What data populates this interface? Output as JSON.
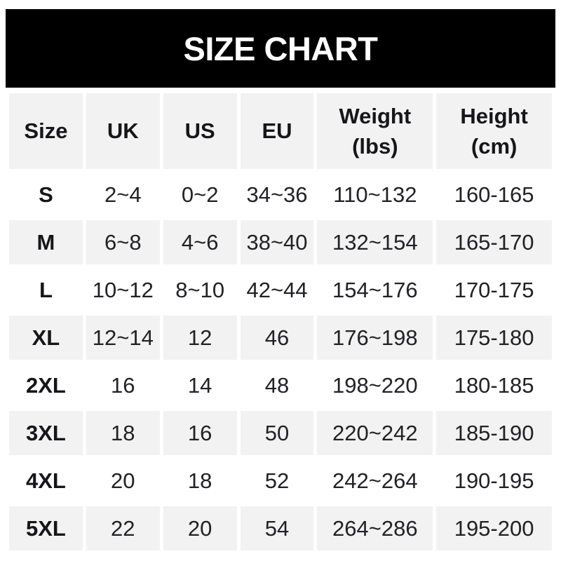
{
  "banner": {
    "title": "SIZE CHART"
  },
  "colors": {
    "page_bg": "#ffffff",
    "banner_bg": "#000000",
    "banner_text": "#ffffff",
    "header_bg": "#f2f2f2",
    "stripe": "#f2f2f2",
    "header_text": "#16161a",
    "text": "#212126"
  },
  "table": {
    "display_columns": [
      "Size",
      "UK",
      "US",
      "EU",
      "Weight\n(lbs)",
      "Height\n(cm)"
    ],
    "row_keys": [
      "size",
      "uk",
      "us",
      "eu",
      "weight",
      "height"
    ]
  },
  "chart_data": {
    "type": "table",
    "title": "SIZE CHART",
    "columns": [
      "Size",
      "UK",
      "US",
      "EU",
      "Weight (lbs)",
      "Height (cm)"
    ],
    "rows": [
      [
        "S",
        "2~4",
        "0~2",
        "34~36",
        "110~132",
        "160-165"
      ],
      [
        "M",
        "6~8",
        "4~6",
        "38~40",
        "132~154",
        "165-170"
      ],
      [
        "L",
        "10~12",
        "8~10",
        "42~44",
        "154~176",
        "170-175"
      ],
      [
        "XL",
        "12~14",
        "12",
        "46",
        "176~198",
        "175-180"
      ],
      [
        "2XL",
        "16",
        "14",
        "48",
        "198~220",
        "180-185"
      ],
      [
        "3XL",
        "18",
        "16",
        "50",
        "220~242",
        "185-190"
      ],
      [
        "4XL",
        "20",
        "18",
        "52",
        "242~264",
        "190-195"
      ],
      [
        "5XL",
        "22",
        "20",
        "54",
        "264~286",
        "195-200"
      ]
    ],
    "layout": {
      "header_background": "#f2f2f2",
      "striped_rows": [
        "M",
        "XL",
        "3XL",
        "5XL"
      ],
      "stripe_color": "#f2f2f2",
      "range_separator_weight": "~",
      "range_separator_height": "-"
    }
  }
}
